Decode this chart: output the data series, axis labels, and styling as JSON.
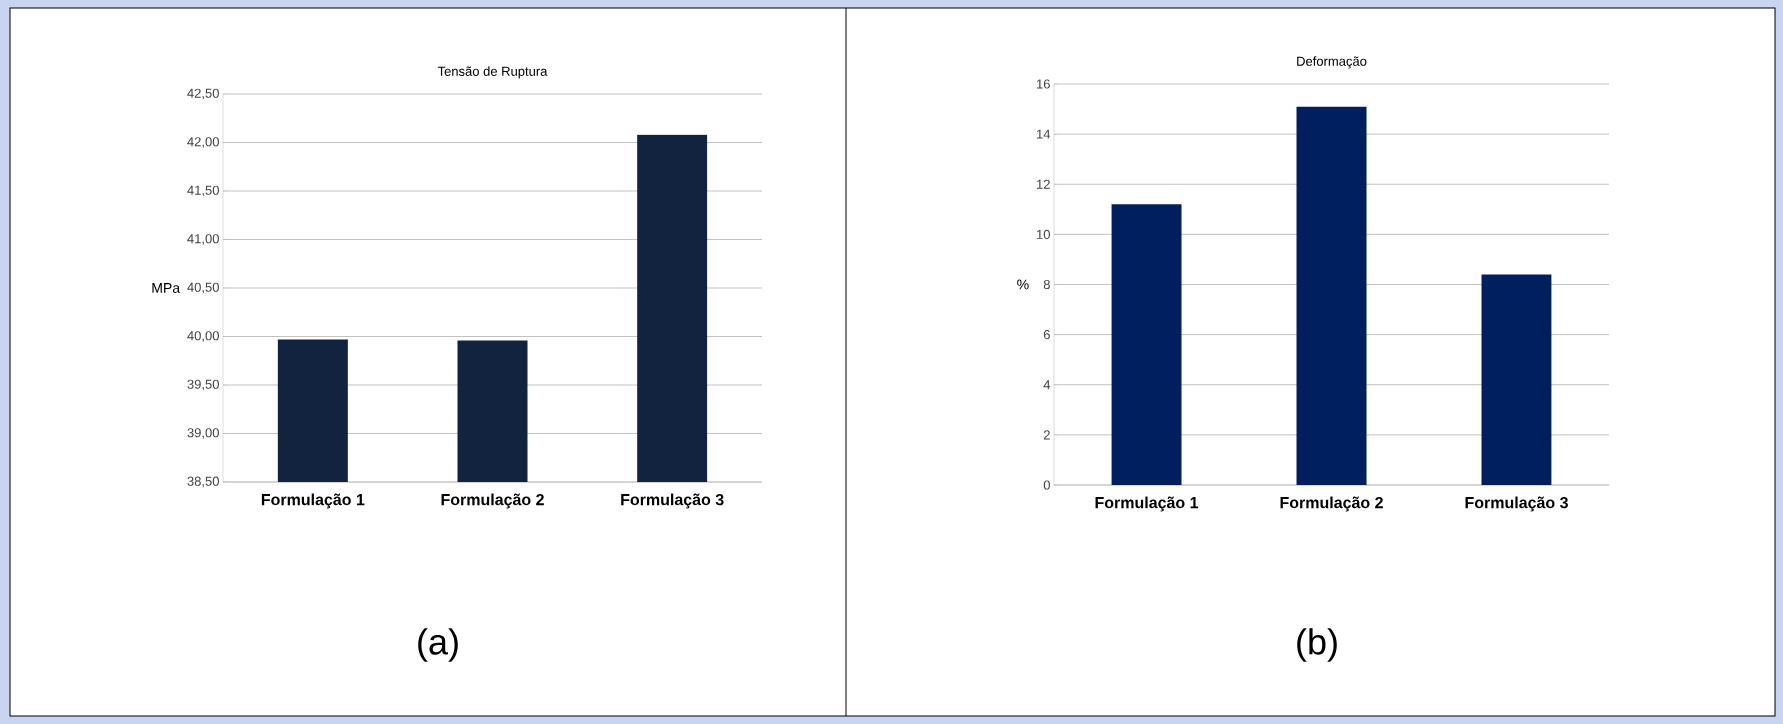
{
  "chart_data": [
    {
      "type": "bar",
      "title": "Tensão de Ruptura",
      "ylabel": "MPa",
      "categories": [
        "Formulação 1",
        "Formulação 2",
        "Formulação 3"
      ],
      "values": [
        39.97,
        39.96,
        42.08
      ],
      "color": "#12233f",
      "ylim": [
        38.5,
        42.5
      ],
      "yticks": [
        {
          "value": 38.5,
          "label": "38,50"
        },
        {
          "value": 39,
          "label": "39,00"
        },
        {
          "value": 39.5,
          "label": "39,50"
        },
        {
          "value": 40,
          "label": "40,00"
        },
        {
          "value": 40.5,
          "label": "40,50"
        },
        {
          "value": 41,
          "label": "41,00"
        },
        {
          "value": 41.5,
          "label": "41,50"
        },
        {
          "value": 42,
          "label": "42,00"
        },
        {
          "value": 42.5,
          "label": "42,50"
        }
      ],
      "grid": "y",
      "annotations": [
        "(a)"
      ]
    },
    {
      "type": "bar",
      "title": "Deformação",
      "ylabel": "%",
      "categories": [
        "Formulação 1",
        "Formulação 2",
        "Formulação 3"
      ],
      "values": [
        11.2,
        15.1,
        8.4
      ],
      "color": "#001f5f",
      "ylim": [
        0,
        16
      ],
      "yticks": [
        0,
        2,
        4,
        6,
        8,
        10,
        12,
        14,
        16
      ],
      "grid": "y",
      "annotations": [
        "(b)"
      ]
    }
  ]
}
